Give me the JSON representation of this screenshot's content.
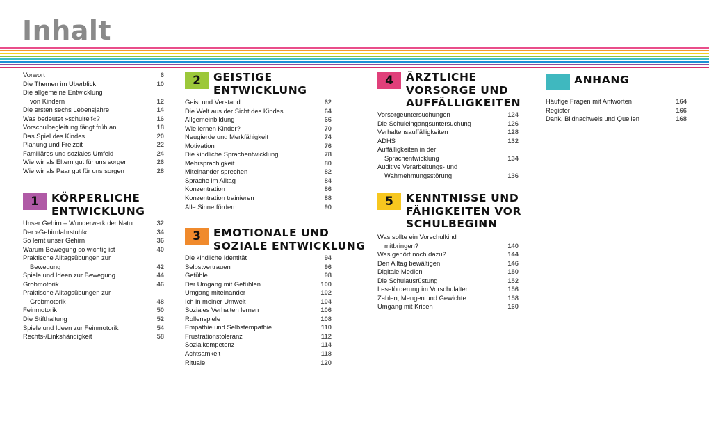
{
  "title": "Inhalt",
  "stripe_colors": [
    "#e94e8a",
    "#f39a2e",
    "#f7d21c",
    "#8cc43f",
    "#3dbfc6",
    "#1e8fd6",
    "#8b4f9e",
    "#d62f6e"
  ],
  "intro": [
    {
      "t": "Vorwort",
      "p": "6"
    },
    {
      "t": "Die Themen im Überblick",
      "p": "10"
    },
    {
      "t": "Die allgemeine Entwicklung",
      "p": ""
    },
    {
      "t": "von Kindern",
      "p": "12",
      "indent": true
    },
    {
      "t": "Die ersten sechs Lebensjahre",
      "p": "14"
    },
    {
      "t": "Was bedeutet »schulreif«?",
      "p": "16"
    },
    {
      "t": "Vorschulbegleitung fängt früh an",
      "p": "18"
    },
    {
      "t": "Das Spiel des Kindes",
      "p": "20"
    },
    {
      "t": "Planung und Freizeit",
      "p": "22"
    },
    {
      "t": "Familiäres und soziales Umfeld",
      "p": "24"
    },
    {
      "t": "Wie wir als Eltern gut für uns sorgen",
      "p": "26"
    },
    {
      "t": "Wie wir als Paar gut für uns sorgen",
      "p": "28"
    }
  ],
  "sections": [
    {
      "num": "1",
      "color": "#b05aa6",
      "title": [
        "KÖRPERLICHE",
        "ENTWICKLUNG"
      ],
      "entries": [
        {
          "t": "Unser Gehirn – Wunderwerk der Natur",
          "p": "32"
        },
        {
          "t": "Der »Gehirnfahrstuhl«",
          "p": "34"
        },
        {
          "t": "So lernt unser Gehirn",
          "p": "36"
        },
        {
          "t": "Warum Bewegung so wichtig ist",
          "p": "40"
        },
        {
          "t": "Praktische Alltagsübungen zur",
          "p": ""
        },
        {
          "t": "Bewegung",
          "p": "42",
          "indent": true
        },
        {
          "t": "Spiele und Ideen zur Bewegung",
          "p": "44"
        },
        {
          "t": "Grobmotorik",
          "p": "46"
        },
        {
          "t": "Praktische Alltagsübungen zur",
          "p": ""
        },
        {
          "t": "Grobmotorik",
          "p": "48",
          "indent": true
        },
        {
          "t": "Feinmotorik",
          "p": "50"
        },
        {
          "t": "Die Stifthaltung",
          "p": "52"
        },
        {
          "t": "Spiele und Ideen zur Feinmotorik",
          "p": "54"
        },
        {
          "t": "Rechts-/Linkshändigkeit",
          "p": "58"
        }
      ]
    },
    {
      "num": "2",
      "color": "#9cc83a",
      "title": [
        "GEISTIGE",
        "ENTWICKLUNG"
      ],
      "entries": [
        {
          "t": "Geist und Verstand",
          "p": "62"
        },
        {
          "t": "Die Welt aus der Sicht des Kindes",
          "p": "64"
        },
        {
          "t": "Allgemeinbildung",
          "p": "66"
        },
        {
          "t": "Wie lernen Kinder?",
          "p": "70"
        },
        {
          "t": "Neugierde und Merkfähigkeit",
          "p": "74"
        },
        {
          "t": "Motivation",
          "p": "76"
        },
        {
          "t": "Die kindliche Sprachentwicklung",
          "p": "78"
        },
        {
          "t": "Mehrsprachigkeit",
          "p": "80"
        },
        {
          "t": "Miteinander sprechen",
          "p": "82"
        },
        {
          "t": "Sprache im Alltag",
          "p": "84"
        },
        {
          "t": "Konzentration",
          "p": "86"
        },
        {
          "t": "Konzentration trainieren",
          "p": "88"
        },
        {
          "t": "Alle Sinne fördern",
          "p": "90"
        }
      ]
    },
    {
      "num": "3",
      "color": "#f08a2c",
      "title": [
        "EMOTIONALE UND",
        "SOZIALE ENTWICKLUNG"
      ],
      "entries": [
        {
          "t": "Die kindliche Identität",
          "p": "94"
        },
        {
          "t": "Selbstvertrauen",
          "p": "96"
        },
        {
          "t": "Gefühle",
          "p": "98"
        },
        {
          "t": "Der Umgang mit Gefühlen",
          "p": "100"
        },
        {
          "t": "Umgang miteinander",
          "p": "102"
        },
        {
          "t": "Ich in meiner Umwelt",
          "p": "104"
        },
        {
          "t": "Soziales Verhalten lernen",
          "p": "106"
        },
        {
          "t": "Rollenspiele",
          "p": "108"
        },
        {
          "t": "Empathie und Selbstempathie",
          "p": "110"
        },
        {
          "t": "Frustrationstoleranz",
          "p": "112"
        },
        {
          "t": "Sozialkompetenz",
          "p": "114"
        },
        {
          "t": "Achtsamkeit",
          "p": "118"
        },
        {
          "t": "Rituale",
          "p": "120"
        }
      ]
    },
    {
      "num": "4",
      "color": "#e0407a",
      "title": [
        "ÄRZTLICHE",
        "VORSORGE UND",
        "AUFFÄLLIGKEITEN"
      ],
      "entries": [
        {
          "t": "Vorsorgeuntersuchungen",
          "p": "124"
        },
        {
          "t": "Die Schuleingangsuntersuchung",
          "p": "126"
        },
        {
          "t": "Verhaltensauffälligkeiten",
          "p": "128"
        },
        {
          "t": "ADHS",
          "p": "132"
        },
        {
          "t": "Auffälligkeiten in der",
          "p": ""
        },
        {
          "t": "Sprachentwicklung",
          "p": "134",
          "indent": true
        },
        {
          "t": "Auditive Verarbeitungs- und",
          "p": ""
        },
        {
          "t": "Wahrnehmungsstörung",
          "p": "136",
          "indent": true
        }
      ]
    },
    {
      "num": "5",
      "color": "#f7c71f",
      "title": [
        "KENNTNISSE UND",
        "FÄHIGKEITEN VOR",
        "SCHULBEGINN"
      ],
      "entries": [
        {
          "t": "Was sollte ein Vorschulkind",
          "p": ""
        },
        {
          "t": "mitbringen?",
          "p": "140",
          "indent": true
        },
        {
          "t": "Was gehört noch dazu?",
          "p": "144"
        },
        {
          "t": "Den Alltag bewältigen",
          "p": "146"
        },
        {
          "t": "Digitale Medien",
          "p": "150"
        },
        {
          "t": "Die Schulausrüstung",
          "p": "152"
        },
        {
          "t": "Leseförderung im Vorschulalter",
          "p": "156"
        },
        {
          "t": "Zahlen, Mengen und Gewichte",
          "p": "158"
        },
        {
          "t": "Umgang mit Krisen",
          "p": "160"
        }
      ]
    },
    {
      "num": "",
      "color": "#3fb8bf",
      "title": [
        "ANHANG"
      ],
      "entries": [
        {
          "t": "Häufige Fragen mit Antworten",
          "p": "164"
        },
        {
          "t": "Register",
          "p": "166"
        },
        {
          "t": "Dank, Bildnachweis und Quellen",
          "p": "168"
        }
      ]
    }
  ]
}
